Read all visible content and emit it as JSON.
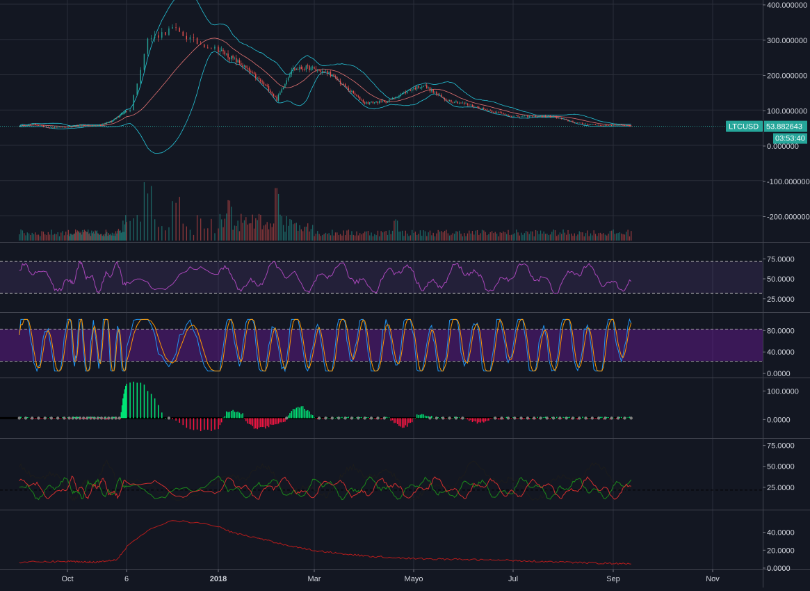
{
  "colors": {
    "background": "#131722",
    "grid": "#2a2e39",
    "axis_text": "#d1d4dc",
    "candle_up": "#26a69a",
    "candle_down": "#ef5350",
    "bollinger": "#26c6da",
    "rsi_line": "#ab47bc",
    "rsi_band": "#7e57c2",
    "stoch_k": "#2196f3",
    "stoch_d": "#ff9800",
    "stoch_band": "#6a1b9a",
    "hist_pos": "#00e676",
    "hist_neg": "#ff1744",
    "dmi_plus": "#1b8a1b",
    "dmi_minus": "#d32f2f",
    "adx": "#1c1c1c",
    "vol_line": "#b71c1c",
    "badge": "#26a69a"
  },
  "price_badge": {
    "symbol": "LTCUSD",
    "price": "53.882643",
    "countdown": "03:53:40"
  },
  "time_axis": [
    "Oct",
    "6",
    "2018",
    "Mar",
    "Mayo",
    "Jul",
    "Sep",
    "Nov"
  ],
  "chart_data": [
    {
      "type": "candlestick",
      "symbol": "LTCUSD",
      "y_ticks": [
        "400.000000",
        "300.000000",
        "200.000000",
        "100.000000",
        "0.000000",
        "-100.000000",
        "-200.000000"
      ],
      "ylim": [
        -260,
        400
      ],
      "last_price": 53.882643,
      "close_path": [
        [
          "2017-09-01",
          55
        ],
        [
          "2017-09-10",
          60
        ],
        [
          "2017-09-20",
          50
        ],
        [
          "2017-10-01",
          52
        ],
        [
          "2017-10-15",
          57
        ],
        [
          "2017-11-01",
          55
        ],
        [
          "2017-11-20",
          68
        ],
        [
          "2017-12-01",
          90
        ],
        [
          "2017-12-07",
          100
        ],
        [
          "2017-12-12",
          300
        ],
        [
          "2017-12-19",
          330
        ],
        [
          "2017-12-26",
          290
        ],
        [
          "2018-01-05",
          260
        ],
        [
          "2018-01-15",
          230
        ],
        [
          "2018-02-01",
          160
        ],
        [
          "2018-02-06",
          130
        ],
        [
          "2018-02-15",
          215
        ],
        [
          "2018-02-25",
          220
        ],
        [
          "2018-03-10",
          205
        ],
        [
          "2018-03-20",
          165
        ],
        [
          "2018-04-01",
          120
        ],
        [
          "2018-04-15",
          125
        ],
        [
          "2018-04-30",
          160
        ],
        [
          "2018-05-07",
          170
        ],
        [
          "2018-05-20",
          130
        ],
        [
          "2018-06-01",
          118
        ],
        [
          "2018-06-15",
          100
        ],
        [
          "2018-07-01",
          82
        ],
        [
          "2018-07-25",
          82
        ],
        [
          "2018-08-10",
          63
        ],
        [
          "2018-08-25",
          56
        ],
        [
          "2018-09-05",
          58
        ],
        [
          "2018-09-12",
          55
        ]
      ],
      "overlays": [
        "Bollinger upper",
        "Bollinger middle",
        "Bollinger lower"
      ],
      "volume": {
        "spikes": [
          [
            "2017-12-12",
            1.0
          ],
          [
            "2017-12-20",
            0.75
          ],
          [
            "2018-01-08",
            0.7
          ],
          [
            "2018-02-06",
            0.9
          ],
          [
            "2018-04-20",
            0.45
          ]
        ]
      }
    },
    {
      "type": "line",
      "indicator": "RSI",
      "y_ticks": [
        "75.0000",
        "50.0000",
        "25.0000"
      ],
      "ylim": [
        10,
        90
      ],
      "band": [
        30,
        70
      ],
      "last_value": 45
    },
    {
      "type": "line",
      "indicator": "Stochastic",
      "y_ticks": [
        "80.0000",
        "40.0000",
        "0.0000"
      ],
      "ylim": [
        -5,
        105
      ],
      "band": [
        20,
        80
      ],
      "last_value": 90
    },
    {
      "type": "bar",
      "indicator": "Histogram",
      "y_ticks": [
        "100.0000",
        "0.0000"
      ],
      "ylim": [
        -60,
        130
      ],
      "positive_humps": [
        [
          "2017-12-08",
          130
        ],
        [
          "2018-01-10",
          25
        ],
        [
          "2018-02-20",
          40
        ],
        [
          "2018-05-05",
          15
        ]
      ],
      "negative_humps": [
        [
          "2017-12-28",
          -45
        ],
        [
          "2018-01-25",
          -35
        ],
        [
          "2018-02-05",
          -20
        ],
        [
          "2018-04-25",
          -30
        ],
        [
          "2018-06-10",
          -15
        ]
      ]
    },
    {
      "type": "line",
      "indicator": "DMI",
      "y_ticks": [
        "75.0000",
        "50.0000",
        "25.0000"
      ],
      "ylim": [
        0,
        78
      ],
      "reference": 20
    },
    {
      "type": "line",
      "indicator": "Volatility",
      "y_ticks": [
        "40.0000",
        "20.0000",
        "0.0000"
      ],
      "ylim": [
        0,
        60
      ],
      "path": [
        [
          "2017-09-01",
          5
        ],
        [
          "2017-10-01",
          6
        ],
        [
          "2017-11-01",
          5
        ],
        [
          "2017-11-25",
          8
        ],
        [
          "2017-12-05",
          20
        ],
        [
          "2017-12-12",
          40
        ],
        [
          "2017-12-19",
          52
        ],
        [
          "2017-12-28",
          48
        ],
        [
          "2018-01-10",
          38
        ],
        [
          "2018-01-25",
          32
        ],
        [
          "2018-02-10",
          25
        ],
        [
          "2018-03-01",
          18
        ],
        [
          "2018-04-01",
          12
        ],
        [
          "2018-05-01",
          9
        ],
        [
          "2018-06-01",
          8
        ],
        [
          "2018-07-01",
          7
        ],
        [
          "2018-08-01",
          5
        ],
        [
          "2018-09-12",
          3
        ]
      ]
    }
  ]
}
